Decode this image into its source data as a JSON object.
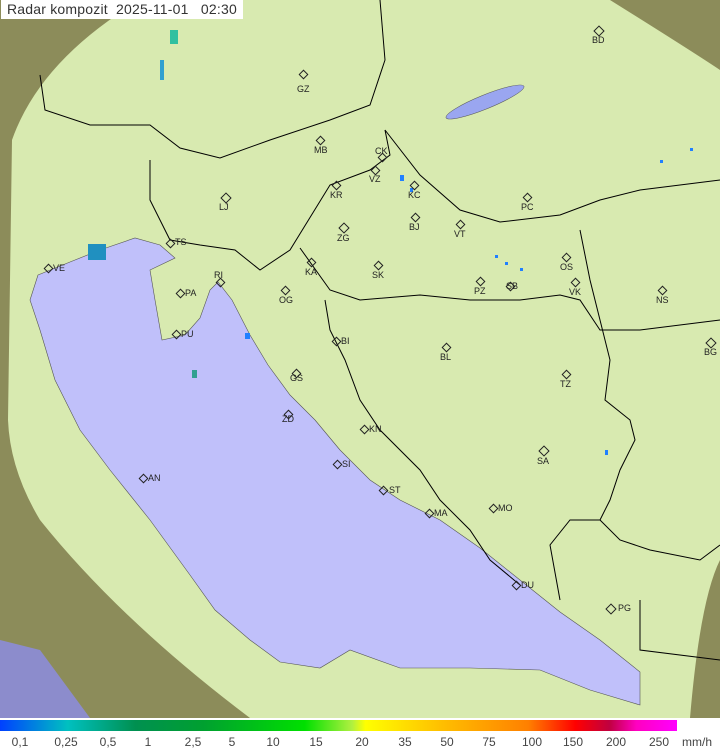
{
  "title": {
    "label": "Radar kompozit",
    "date": "2025-11-01",
    "time": "02:30"
  },
  "colors": {
    "sea": "#c0c0fa",
    "coverage_land": "#d8eab0",
    "outside_land": "#8c8c5a",
    "border": "#000000"
  },
  "cities": [
    {
      "code": "BD",
      "big": true
    },
    {
      "code": "GZ"
    },
    {
      "code": "MB"
    },
    {
      "code": "CK"
    },
    {
      "code": "VZ"
    },
    {
      "code": "KC"
    },
    {
      "code": "KR"
    },
    {
      "code": "LJ",
      "big": true
    },
    {
      "code": "PC"
    },
    {
      "code": "BJ"
    },
    {
      "code": "ZG",
      "big": true
    },
    {
      "code": "TS"
    },
    {
      "code": "VT"
    },
    {
      "code": "OS"
    },
    {
      "code": "VE"
    },
    {
      "code": "KA"
    },
    {
      "code": "SK"
    },
    {
      "code": "RI"
    },
    {
      "code": "PA"
    },
    {
      "code": "PZ"
    },
    {
      "code": "SB"
    },
    {
      "code": "VK"
    },
    {
      "code": "NS"
    },
    {
      "code": "OG"
    },
    {
      "code": "PU"
    },
    {
      "code": "BG",
      "big": true
    },
    {
      "code": "BI"
    },
    {
      "code": "BL"
    },
    {
      "code": "GS"
    },
    {
      "code": "TZ"
    },
    {
      "code": "ZD"
    },
    {
      "code": "KN"
    },
    {
      "code": "SA",
      "big": true
    },
    {
      "code": "SI"
    },
    {
      "code": "AN"
    },
    {
      "code": "ST"
    },
    {
      "code": "MO"
    },
    {
      "code": "MA"
    },
    {
      "code": "DU"
    },
    {
      "code": "PG",
      "big": true
    }
  ],
  "legend": {
    "ticks": [
      "0,1",
      "0,25",
      "0,5",
      "1",
      "2,5",
      "5",
      "10",
      "15",
      "20",
      "35",
      "50",
      "75",
      "100",
      "150",
      "200",
      "250"
    ],
    "unit": "mm/h"
  }
}
